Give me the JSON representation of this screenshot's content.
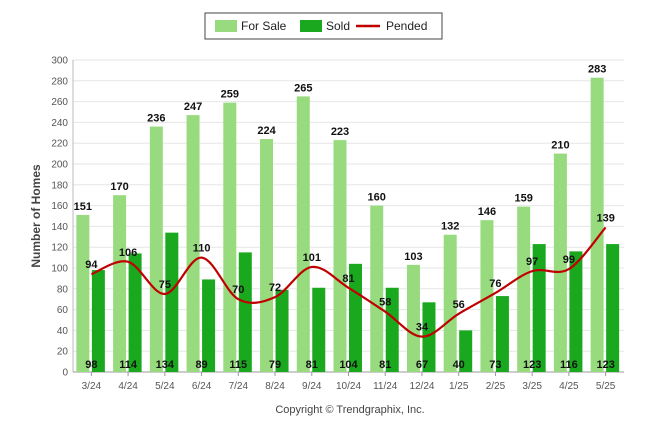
{
  "chart_data": {
    "type": "bar",
    "title": "",
    "xlabel": "",
    "ylabel": "Number of Homes",
    "ylim": [
      0,
      300
    ],
    "ytick_step": 20,
    "grid": true,
    "legend_position": "top-center",
    "categories": [
      "3/24",
      "4/24",
      "5/24",
      "6/24",
      "7/24",
      "8/24",
      "9/24",
      "10/24",
      "11/24",
      "12/24",
      "1/25",
      "2/25",
      "3/25",
      "4/25",
      "5/25"
    ],
    "series": [
      {
        "name": "For Sale",
        "kind": "bar",
        "color": "#98db7e",
        "values": [
          151,
          170,
          236,
          247,
          259,
          224,
          265,
          223,
          160,
          103,
          132,
          146,
          159,
          210,
          283
        ]
      },
      {
        "name": "Sold",
        "kind": "bar",
        "color": "#1aa81e",
        "values": [
          98,
          114,
          134,
          89,
          115,
          79,
          81,
          104,
          81,
          67,
          40,
          73,
          123,
          116,
          123
        ]
      },
      {
        "name": "Pended",
        "kind": "line",
        "color": "#c00000",
        "values": [
          94,
          106,
          75,
          110,
          70,
          72,
          101,
          81,
          58,
          34,
          56,
          76,
          97,
          99,
          139
        ]
      }
    ],
    "copyright": "Copyright © Trendgraphix, Inc."
  }
}
